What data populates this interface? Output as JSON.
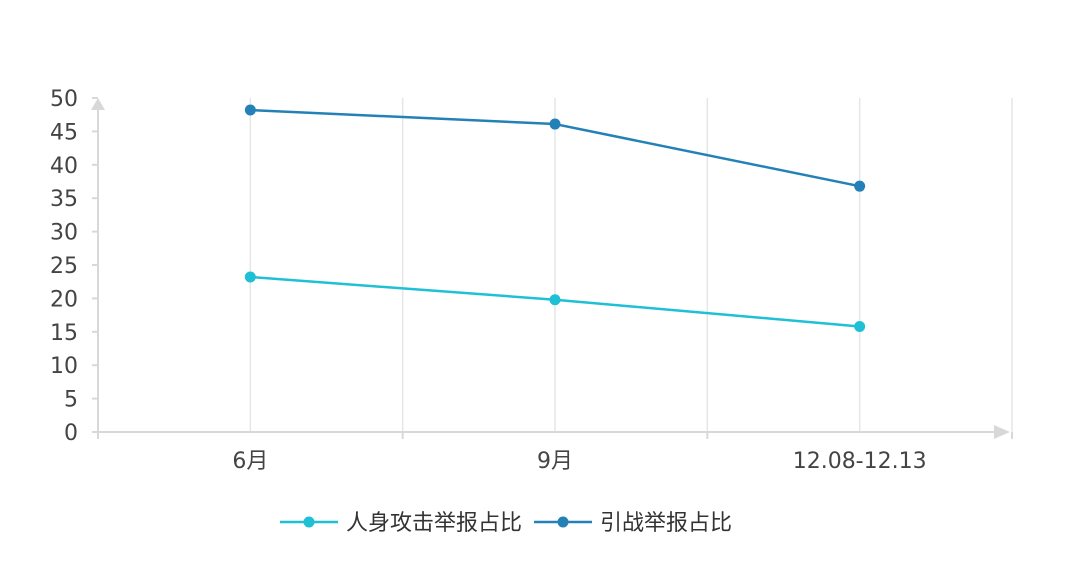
{
  "chart_data": {
    "type": "line",
    "categories": [
      "6月",
      "9月",
      "12.08-12.13"
    ],
    "series": [
      {
        "name": "人身攻击举报占比",
        "values": [
          23.2,
          19.8,
          15.8
        ],
        "color": "#1fc0d6"
      },
      {
        "name": "引战举报占比",
        "values": [
          48.2,
          46.1,
          36.8
        ],
        "color": "#2481b8"
      }
    ],
    "title": "",
    "xlabel": "",
    "ylabel": "",
    "ylim": [
      0,
      50
    ],
    "yticks": [
      "0",
      "5",
      "10",
      "15",
      "20",
      "25",
      "30",
      "35",
      "40",
      "45",
      "50"
    ],
    "grid": {
      "vertical": true,
      "horizontal": false
    },
    "legend": "bottom-center",
    "colors": {
      "axis": "#d8d8d8",
      "grid": "#e6e6e6"
    }
  }
}
